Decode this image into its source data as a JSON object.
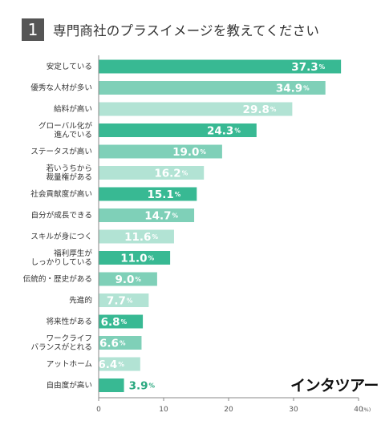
{
  "header": {
    "number": "1",
    "title": "専門商社のプラスイメージを教えてください"
  },
  "brand": {
    "logo_text": "インタツアー"
  },
  "colors": {
    "dark": "#38b993",
    "medium": "#7fd0b8",
    "light": "#b2e3d4",
    "axis": "#888888"
  },
  "chart_data": {
    "type": "bar",
    "orientation": "horizontal",
    "title": "専門商社のプラスイメージを教えてください",
    "unit": "(%)",
    "xlim": [
      0,
      40
    ],
    "ticks": [
      0,
      10,
      20,
      30,
      40
    ],
    "grid": false,
    "categories": [
      [
        "安定している"
      ],
      [
        "優秀な人材が多い"
      ],
      [
        "給料が高い"
      ],
      [
        "グローバル化が",
        "進んでいる"
      ],
      [
        "ステータスが高い"
      ],
      [
        "若いうちから",
        "裁量権がある"
      ],
      [
        "社会貢献度が高い"
      ],
      [
        "自分が成長できる"
      ],
      [
        "スキルが身につく"
      ],
      [
        "福利厚生が",
        "しっかりしている"
      ],
      [
        "伝統的・歴史がある"
      ],
      [
        "先進的"
      ],
      [
        "将来性がある"
      ],
      [
        "ワークライフ",
        "バランスがとれる"
      ],
      [
        "アットホーム"
      ],
      [
        "自由度が高い"
      ]
    ],
    "values": [
      37.3,
      34.9,
      29.8,
      24.3,
      19.0,
      16.2,
      15.1,
      14.7,
      11.6,
      11.0,
      9.0,
      7.7,
      6.8,
      6.6,
      6.4,
      3.9
    ],
    "value_labels": [
      "37.3",
      "34.9",
      "29.8",
      "24.3",
      "19.0",
      "16.2",
      "15.1",
      "14.7",
      "11.6",
      "11.0",
      "9.0",
      "7.7",
      "6.8",
      "6.6",
      "6.4",
      "3.9"
    ],
    "percent_sign": "%",
    "shades": [
      "dark",
      "medium",
      "light",
      "dark",
      "medium",
      "light",
      "dark",
      "medium",
      "light",
      "dark",
      "medium",
      "light",
      "dark",
      "medium",
      "light",
      "dark"
    ]
  }
}
